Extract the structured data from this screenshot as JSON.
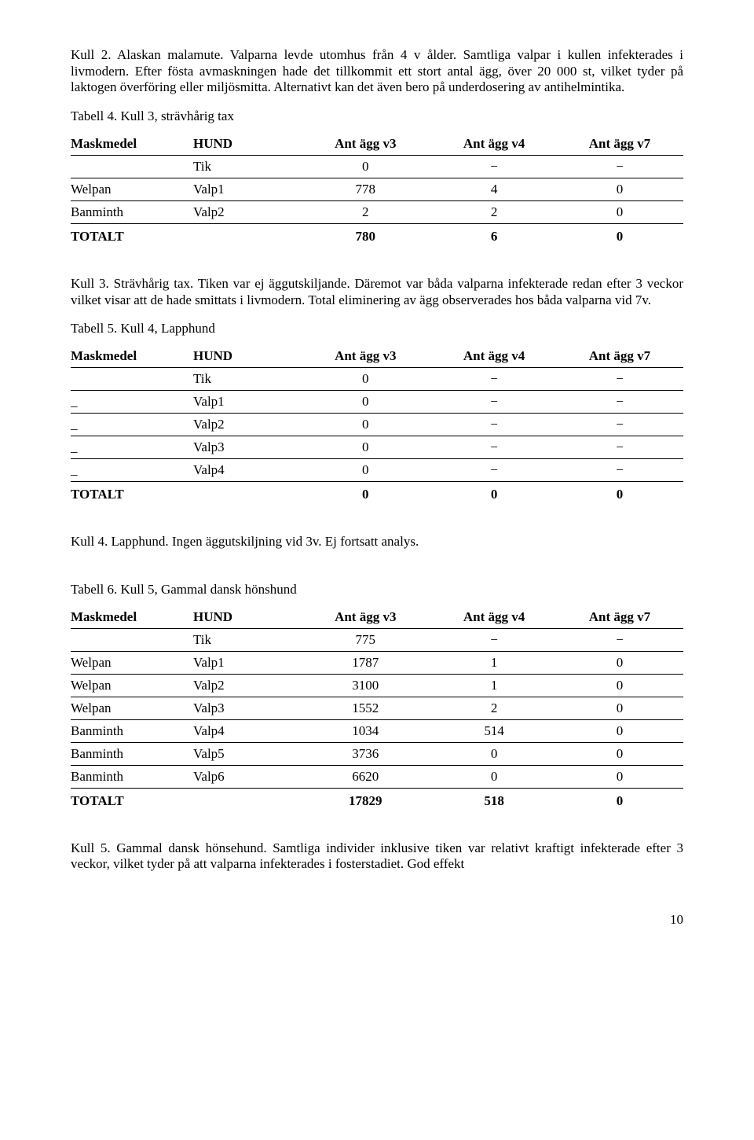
{
  "para1": "Kull 2. Alaskan malamute. Valparna levde utomhus från 4 v ålder. Samtliga valpar i kullen infekterades i livmodern. Efter fösta avmaskningen hade det tillkommit ett stort antal ägg, över 20 000 st, vilket tyder på laktogen överföring eller miljösmitta. Alternativt kan det även bero på underdosering av antihelmintika.",
  "table4": {
    "caption": "Tabell 4. Kull 3, strävhårig tax",
    "headers": [
      "Maskmedel",
      "HUND",
      "Ant ägg v3",
      "Ant ägg v4",
      "Ant ägg v7"
    ],
    "rows": [
      [
        "",
        "Tik",
        "0",
        "−",
        "−"
      ],
      [
        "Welpan",
        "Valp1",
        "778",
        "4",
        "0"
      ],
      [
        "Banminth",
        "Valp2",
        "2",
        "2",
        "0"
      ]
    ],
    "total": [
      "TOTALT",
      "",
      "780",
      "6",
      "0"
    ]
  },
  "para2": "Kull 3. Strävhårig tax. Tiken var ej äggutskiljande. Däremot var båda valparna infekterade redan efter 3 veckor vilket visar att de hade smittats i livmodern. Total eliminering av ägg observerades hos båda valparna vid 7v.",
  "table5": {
    "caption": "Tabell 5. Kull 4, Lapphund",
    "headers": [
      "Maskmedel",
      "HUND",
      "Ant ägg v3",
      "Ant ägg v4",
      "Ant ägg v7"
    ],
    "rows": [
      [
        "",
        "Tik",
        "0",
        "−",
        "−"
      ],
      [
        "_",
        "Valp1",
        "0",
        "−",
        "−"
      ],
      [
        "_",
        "Valp2",
        "0",
        "−",
        "−"
      ],
      [
        "_",
        "Valp3",
        "0",
        "−",
        "−"
      ],
      [
        "_",
        "Valp4",
        "0",
        "−",
        "−"
      ]
    ],
    "total": [
      "TOTALT",
      "",
      "0",
      "0",
      "0"
    ]
  },
  "para3": "Kull 4. Lapphund. Ingen äggutskiljning vid 3v. Ej fortsatt analys.",
  "table6": {
    "caption": "Tabell 6. Kull 5, Gammal dansk hönshund",
    "headers": [
      "Maskmedel",
      "HUND",
      "Ant ägg v3",
      "Ant ägg v4",
      "Ant ägg v7"
    ],
    "rows": [
      [
        "",
        "Tik",
        "775",
        "−",
        "−"
      ],
      [
        "Welpan",
        "Valp1",
        "1787",
        "1",
        "0"
      ],
      [
        "Welpan",
        "Valp2",
        "3100",
        "1",
        "0"
      ],
      [
        "Welpan",
        "Valp3",
        "1552",
        "2",
        "0"
      ],
      [
        "Banminth",
        "Valp4",
        "1034",
        "514",
        "0"
      ],
      [
        "Banminth",
        "Valp5",
        "3736",
        "0",
        "0"
      ],
      [
        "Banminth",
        "Valp6",
        "6620",
        "0",
        "0"
      ]
    ],
    "total": [
      "TOTALT",
      "",
      "17829",
      "518",
      "0"
    ]
  },
  "para4": "Kull 5. Gammal dansk hönsehund. Samtliga individer inklusive tiken var relativt kraftigt infekterade efter 3 veckor, vilket tyder på att valparna infekterades i fosterstadiet. God effekt",
  "pageNum": "10"
}
